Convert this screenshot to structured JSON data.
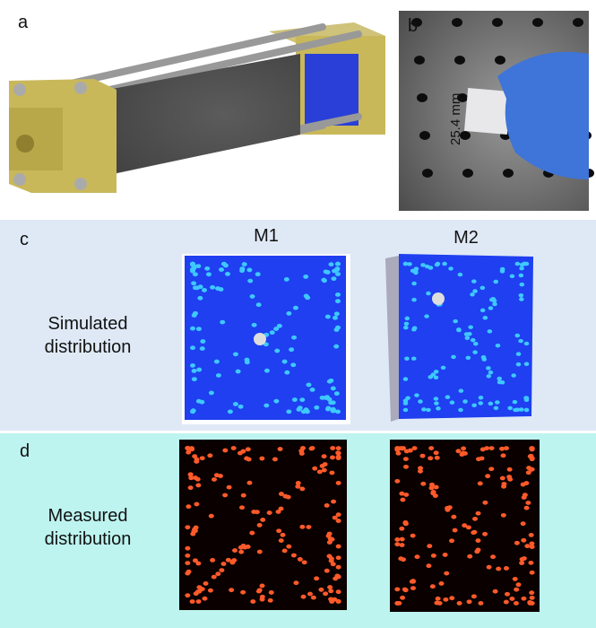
{
  "panels": [
    {
      "label": "a"
    },
    {
      "label": "b",
      "scale_label": "25.4 mm"
    },
    {
      "label": "c",
      "row_label": "Simulated distribution"
    },
    {
      "label": "d",
      "row_label": "Measured distribution"
    }
  ],
  "columns": [
    "M1",
    "M2"
  ]
}
